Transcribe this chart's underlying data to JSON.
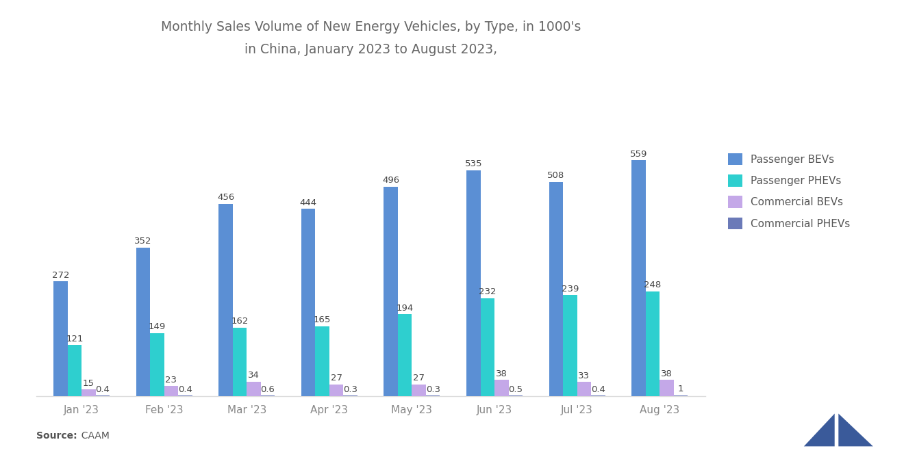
{
  "title_line1": "Monthly Sales Volume of New Energy Vehicles, by Type, in 1000's",
  "title_line2": "in China, January 2023 to August 2023,",
  "source_bold": "Source:",
  "source_rest": "  CAAM",
  "months": [
    "Jan '23",
    "Feb '23",
    "Mar '23",
    "Apr '23",
    "May '23",
    "Jun '23",
    "Jul '23",
    "Aug '23"
  ],
  "passenger_bevs": [
    272,
    352,
    456,
    444,
    496,
    535,
    508,
    559
  ],
  "passenger_phevs": [
    121,
    149,
    162,
    165,
    194,
    232,
    239,
    248
  ],
  "commercial_bevs": [
    15,
    23,
    34,
    27,
    27,
    38,
    33,
    38
  ],
  "commercial_phevs": [
    0.4,
    0.4,
    0.6,
    0.3,
    0.3,
    0.5,
    0.4,
    1
  ],
  "color_bev": "#5B8FD4",
  "color_phev": "#2ECFCF",
  "color_com_bev": "#C4A8E8",
  "color_com_phev": "#6B7AB8",
  "legend_labels": [
    "Passenger BEVs",
    "Passenger PHEVs",
    "Commercial BEVs",
    "Commercial PHEVs"
  ],
  "background_color": "#FFFFFF",
  "title_color": "#666666",
  "label_color": "#444444",
  "axis_label_color": "#888888",
  "bar_width": 0.17,
  "ylim": [
    0,
    680
  ],
  "logo_color": "#3A5A9A"
}
